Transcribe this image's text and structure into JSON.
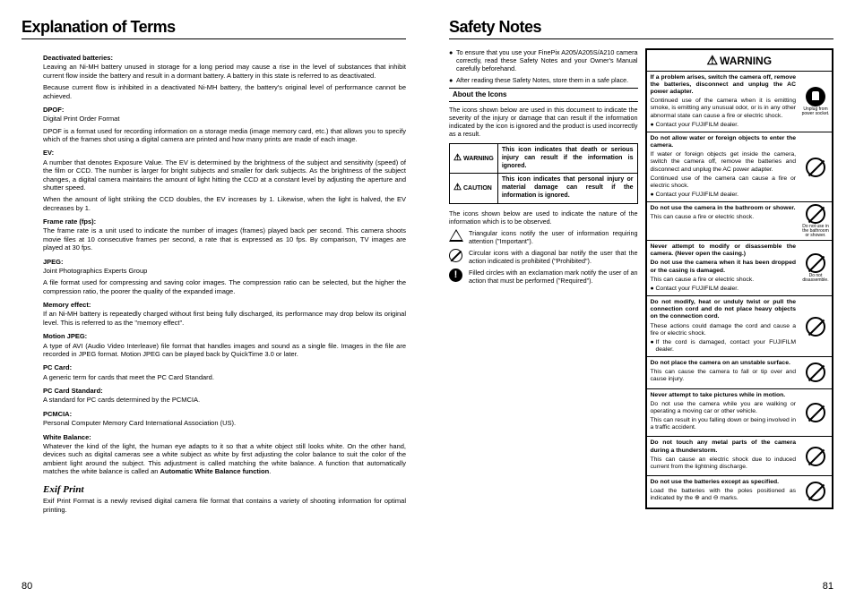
{
  "left": {
    "title": "Explanation of Terms",
    "pageNum": "80",
    "terms": [
      {
        "title": "Deactivated batteries:",
        "body": "Leaving an Ni-MH battery unused in storage for a long period may cause a rise in the level of substances that inhibit current flow inside the battery and result in a dormant battery. A battery in this state is referred to as deactivated.",
        "body2": "Because current flow is inhibited in a deactivated Ni-MH battery, the battery's original level of performance cannot be achieved."
      },
      {
        "title": "DPOF:",
        "body": "Digital Print Order Format",
        "body2": "DPOF is a format used for recording information on a storage media (image memory card, etc.) that allows you to specify which of the frames shot using a digital camera are printed and how many prints are made of each image."
      },
      {
        "title": "EV:",
        "body": "A number that denotes Exposure Value. The EV is determined by the brightness of the subject and sensitivity (speed) of the film or CCD. The number is larger for bright subjects and smaller for dark subjects. As the brightness of the subject changes, a digital camera maintains the amount of light hitting the CCD at a constant level by adjusting the aperture and shutter speed.",
        "body2": "When the amount of light striking the CCD doubles, the EV increases by 1. Likewise, when the light is halved, the EV decreases by 1."
      },
      {
        "title": "Frame rate (fps):",
        "body": "The frame rate is a unit used to indicate the number of images (frames) played back per second. This camera shoots movie files at 10 consecutive frames per second, a rate that is expressed as 10 fps. By comparison, TV images are played at 30 fps."
      },
      {
        "title": "JPEG:",
        "body": "Joint Photographics Experts Group",
        "body2": "A file format used for compressing and saving color images. The compression ratio can be selected, but the higher the compression ratio, the poorer the quality of the expanded image."
      },
      {
        "title": "Memory effect:",
        "body": "If an Ni-MH battery is repeatedly charged without first being fully discharged, its performance may drop below its original level. This is referred to as the \"memory effect\"."
      },
      {
        "title": "Motion JPEG:",
        "body": "A type of AVI (Audio Video Interleave) file format that handles images and sound as a single file. Images in the file are recorded in JPEG format. Motion JPEG can be played back by QuickTime 3.0 or later."
      },
      {
        "title": "PC Card:",
        "body": "A generic term for cards that meet the PC Card Standard."
      },
      {
        "title": "PC Card Standard:",
        "body": "A standard for PC cards determined by the PCMCIA."
      },
      {
        "title": "PCMCIA:",
        "body": "Personal Computer Memory Card International Association (US)."
      },
      {
        "title": "White Balance:",
        "body": "Whatever the kind of the light, the human eye adapts to it so that a white object still looks white. On the other hand, devices such as digital cameras see a white subject as white by first adjusting the color balance to suit the color of the ambient light around the subject. This adjustment is called matching the white balance. A function that automatically matches the white balance is called an Automatic White Balance function."
      }
    ],
    "exifLabel": "Exif Print",
    "exifBody": "Exif Print Format is a newly revised digital camera file format that contains a variety of shooting information for optimal printing."
  },
  "right": {
    "title": "Safety Notes",
    "pageNum": "81",
    "intro": [
      "To ensure that you use your FinePix A205/A205S/A210 camera correctly, read these Safety Notes and your Owner's Manual carefully beforehand.",
      "After reading these Safety Notes, store them in a safe place."
    ],
    "aboutIcons": "About the Icons",
    "aboutBody": "The icons shown below are used in this document to indicate the severity of the injury or damage that can result if the information indicated by the icon is ignored and the product is used incorrectly as a result.",
    "warnLabel": "WARNING",
    "warnDesc": "This icon indicates that death or serious injury can result if the information is ignored.",
    "cautionLabel": "CAUTION",
    "cautionDesc": "This icon indicates that personal injury or material damage can result if the information is ignored.",
    "obsIntro": "The icons shown below are used to indicate the nature of the information which is to be observed.",
    "triDesc": "Triangular icons notify the user of information requiring attention (\"Important\").",
    "circDesc": "Circular icons with a diagonal bar notify the user that the action indicated is prohibited (\"Prohibited\").",
    "fillDesc": "Filled circles with an exclamation mark notify the user of an action that must be performed (\"Required\").",
    "boxTitle": "WARNING",
    "items": [
      {
        "title": "If a problem arises, switch the camera off, remove the batteries, disconnect and unplug the AC power adapter.",
        "lines": [
          "Continued use of the camera when it is emitting smoke, is emitting any unusual odor, or is in any other abnormal state can cause a fire or electric shock.",
          "● Contact your FUJIFILM dealer."
        ],
        "icon": "plug",
        "cap": "Unplug from power socket."
      },
      {
        "title": "Do not allow water or foreign objects to enter the camera.",
        "lines": [
          "If water or foreign objects get inside the camera, switch the camera off, remove the batteries and disconnect and unplug the AC power adapter.",
          "Continued use of the camera can cause a fire or electric shock.",
          "● Contact your FUJIFILM dealer."
        ],
        "icon": "slash"
      },
      {
        "title": "Do not use the camera in the bathroom or shower.",
        "lines": [
          "This can cause a fire or electric shock."
        ],
        "icon": "slash",
        "cap": "Do not use in the bathroom or shower."
      },
      {
        "title": "Never attempt to modify or disassemble the camera. (Never open the casing.)",
        "title2": "Do not use the camera when it has been dropped or the casing is damaged.",
        "lines": [
          "This can cause a fire or electric shock.",
          "● Contact your FUJIFILM dealer."
        ],
        "icon": "slash",
        "cap": "Do not disassemble."
      },
      {
        "title": "Do not modify, heat or unduly twist or pull the connection cord and do not place heavy objects on the connection cord.",
        "lines": [
          "These actions could damage the cord and cause a fire or electric shock.",
          "● If the cord is damaged, contact your FUJIFILM dealer."
        ],
        "icon": "slash"
      },
      {
        "title": "Do not place the camera on an unstable surface.",
        "lines": [
          "This can cause the camera to fall or tip over and cause injury."
        ],
        "icon": "slash"
      },
      {
        "title": "Never attempt to take pictures while in motion.",
        "lines": [
          "Do not use the camera while you are walking or operating a moving car or other vehicle.",
          "This can result in you falling down or being involved in a traffic accident."
        ],
        "icon": "slash"
      },
      {
        "title": "Do not touch any metal parts of the camera during a thunderstorm.",
        "lines": [
          "This can cause an electric shock due to induced current from the lightning discharge."
        ],
        "icon": "slash"
      },
      {
        "title": "Do not use the batteries except as specified.",
        "lines": [
          "Load the batteries with the poles positioned as indicated by the ⊕ and ⊖ marks."
        ],
        "icon": "slash"
      }
    ]
  }
}
